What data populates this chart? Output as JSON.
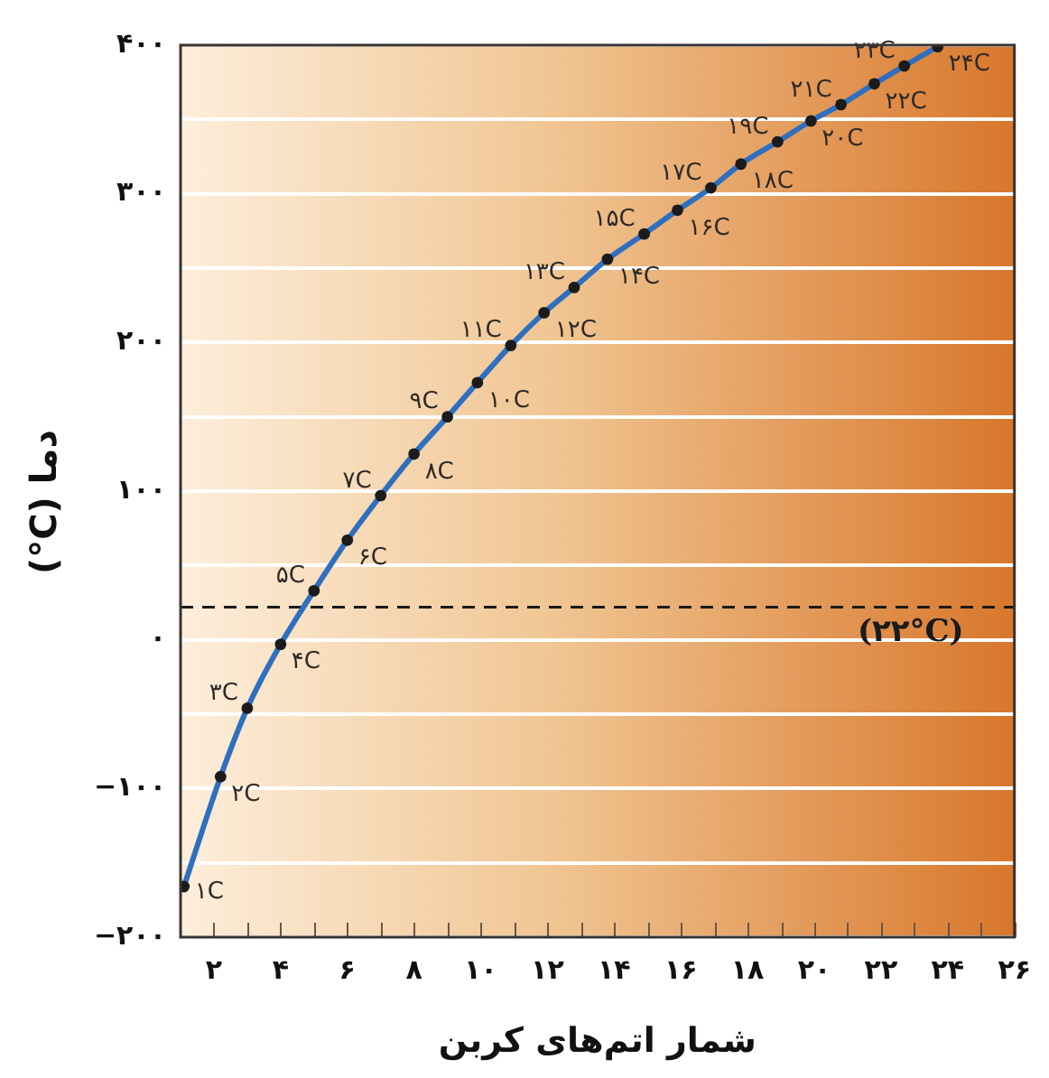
{
  "chart_data": {
    "type": "line",
    "xlabel": "شمار اتم‌های کربن",
    "ylabel": "دما (°C)",
    "x": [
      1.1,
      2.2,
      3,
      4,
      5,
      6,
      7,
      8,
      9,
      9.9,
      10.9,
      11.9,
      12.8,
      13.8,
      14.9,
      15.9,
      16.9,
      17.8,
      18.9,
      19.9,
      20.8,
      21.8,
      22.7,
      23.7
    ],
    "series": [
      {
        "color": "#2f6fbf",
        "values": [
          -166,
          -92,
          -46,
          -3,
          33,
          67,
          97,
          125,
          150,
          173,
          198,
          220,
          237,
          256,
          273,
          289,
          304,
          320,
          335,
          349,
          360,
          374,
          386,
          399
        ]
      }
    ],
    "marker": "circle",
    "grid": "y",
    "xlim": [
      1,
      26
    ],
    "xticks": [
      {
        "value": 2,
        "label": "۲"
      },
      {
        "value": 3,
        "label": null
      },
      {
        "value": 4,
        "label": "۴"
      },
      {
        "value": 5,
        "label": null
      },
      {
        "value": 6,
        "label": "۶"
      },
      {
        "value": 7,
        "label": null
      },
      {
        "value": 8,
        "label": "۸"
      },
      {
        "value": 9,
        "label": null
      },
      {
        "value": 10,
        "label": "۱۰"
      },
      {
        "value": 11,
        "label": null
      },
      {
        "value": 12,
        "label": "۱۲"
      },
      {
        "value": 13,
        "label": null
      },
      {
        "value": 14,
        "label": "۱۴"
      },
      {
        "value": 15,
        "label": null
      },
      {
        "value": 16,
        "label": "۱۶"
      },
      {
        "value": 17,
        "label": null
      },
      {
        "value": 18,
        "label": "۱۸"
      },
      {
        "value": 19,
        "label": null
      },
      {
        "value": 20,
        "label": "۲۰"
      },
      {
        "value": 21,
        "label": null
      },
      {
        "value": 22,
        "label": "۲۲"
      },
      {
        "value": 23,
        "label": null
      },
      {
        "value": 24,
        "label": "۲۴"
      },
      {
        "value": 25,
        "label": null
      },
      {
        "value": 26,
        "label": "۲۶"
      }
    ],
    "ylim": [
      -200,
      400
    ],
    "yticks": [
      {
        "value": -200,
        "label": "−۲۰۰"
      },
      {
        "value": -150,
        "label": null
      },
      {
        "value": -100,
        "label": "−۱۰۰"
      },
      {
        "value": -50,
        "label": null
      },
      {
        "value": 0,
        "label": "۰"
      },
      {
        "value": 50,
        "label": null
      },
      {
        "value": 100,
        "label": "۱۰۰"
      },
      {
        "value": 150,
        "label": null
      },
      {
        "value": 200,
        "label": "۲۰۰"
      },
      {
        "value": 250,
        "label": null
      },
      {
        "value": 300,
        "label": "۳۰۰"
      },
      {
        "value": 350,
        "label": null
      },
      {
        "value": 400,
        "label": "۴۰۰"
      }
    ],
    "ref_lines": [
      {
        "axis": "y",
        "value": 22,
        "label": "(۲۲°C)",
        "color": "#1a1a1a",
        "line_style": "dashed"
      }
    ],
    "annotations": [
      {
        "text": "۱C",
        "x": 1.1,
        "y": -166
      },
      {
        "text": "۲C",
        "x": 2.2,
        "y": -92
      },
      {
        "text": "۳C",
        "x": 3,
        "y": -46
      },
      {
        "text": "۴C",
        "x": 4,
        "y": -3
      },
      {
        "text": "۵C",
        "x": 5,
        "y": 33
      },
      {
        "text": "۶C",
        "x": 6,
        "y": 67
      },
      {
        "text": "۷C",
        "x": 7,
        "y": 97
      },
      {
        "text": "۸C",
        "x": 8,
        "y": 125
      },
      {
        "text": "۹C",
        "x": 9,
        "y": 150
      },
      {
        "text": "۱۰C",
        "x": 9.9,
        "y": 173
      },
      {
        "text": "۱۱C",
        "x": 10.9,
        "y": 198
      },
      {
        "text": "۱۲C",
        "x": 11.9,
        "y": 220
      },
      {
        "text": "۱۳C",
        "x": 12.8,
        "y": 237
      },
      {
        "text": "۱۴C",
        "x": 13.8,
        "y": 256
      },
      {
        "text": "۱۵C",
        "x": 14.9,
        "y": 273
      },
      {
        "text": "۱۶C",
        "x": 15.9,
        "y": 289
      },
      {
        "text": "۱۷C",
        "x": 16.9,
        "y": 304
      },
      {
        "text": "۱۸C",
        "x": 17.8,
        "y": 320
      },
      {
        "text": "۱۹C",
        "x": 18.9,
        "y": 335
      },
      {
        "text": "۲۰C",
        "x": 19.9,
        "y": 349
      },
      {
        "text": "۲۱C",
        "x": 20.8,
        "y": 360
      },
      {
        "text": "۲۲C",
        "x": 21.8,
        "y": 374
      },
      {
        "text": "۲۳C",
        "x": 22.7,
        "y": 386
      },
      {
        "text": "۲۴C",
        "x": 23.7,
        "y": 399
      }
    ]
  }
}
